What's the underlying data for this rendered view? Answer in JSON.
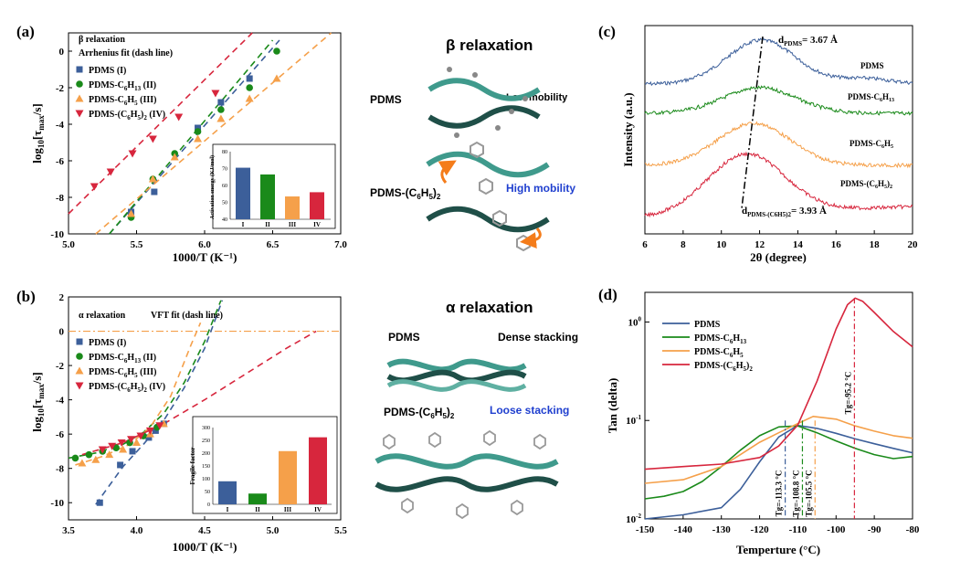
{
  "colors": {
    "blue": "#3c5f9a",
    "green": "#1a8a1a",
    "orange": "#f5a04a",
    "red": "#d7263d",
    "teal": "#3f9a8c",
    "dark_teal": "#1f4f48"
  },
  "panel_a": {
    "label": "(a)",
    "note1": "β relaxation",
    "note2": "Arrhenius fit (dash line)",
    "legend": [
      {
        "base": "PDMS (I)"
      },
      {
        "base": "PDMS-C",
        "sub": "6",
        "tail": "H",
        "sub2": "13",
        "end": " (II)"
      },
      {
        "base": "PDMS-C",
        "sub": "6",
        "tail": "H",
        "sub2": "5",
        "end": " (III)"
      },
      {
        "base": "PDMS-(C",
        "sub": "6",
        "tail": "H",
        "sub2": "5",
        "end": ")",
        "sub3": "2",
        "end2": " (IV)"
      }
    ],
    "ylabel": "log10[τmax/s]",
    "xlabel": "1000/T (K⁻¹)",
    "xticks": [
      "5.0",
      "5.5",
      "6.0",
      "6.5",
      "7.0"
    ],
    "yticks": [
      "0",
      "-2",
      "-4",
      "-6",
      "-8",
      "-10"
    ],
    "inset": {
      "ylabel": "Activation energy (KJ/mol)",
      "yticks": [
        "40",
        "50",
        "60",
        "70",
        "80"
      ],
      "categories": [
        "I",
        "II",
        "III",
        "IV"
      ],
      "values": [
        70.5,
        66.5,
        53.5,
        56
      ]
    }
  },
  "panel_b": {
    "label": "(b)",
    "note1": "α relaxation",
    "note2": "VFT fit (dash line)",
    "legend": [
      {
        "base": "PDMS (I)"
      },
      {
        "base": "PDMS-C",
        "sub": "6",
        "tail": "H",
        "sub2": "13",
        "end": " (II)"
      },
      {
        "base": "PDMS-C",
        "sub": "6",
        "tail": "H",
        "sub2": "5",
        "end": " (III)"
      },
      {
        "base": "PDMS-(C",
        "sub": "6",
        "tail": "H",
        "sub2": "5",
        "end": ")",
        "sub3": "2",
        "end2": " (IV)"
      }
    ],
    "ylabel": "log10[τmax/s]",
    "xlabel": "1000/T (K⁻¹)",
    "xticks": [
      "3.5",
      "4.0",
      "4.5",
      "5.0",
      "5.5"
    ],
    "yticks": [
      "2",
      "0",
      "-2",
      "-4",
      "-6",
      "-8",
      "-10"
    ],
    "inset": {
      "ylabel": "Fragile factor",
      "yticks": [
        "0",
        "50",
        "100",
        "150",
        "200",
        "250",
        "300"
      ],
      "categories": [
        "I",
        "II",
        "III",
        "IV"
      ],
      "values": [
        90,
        42,
        208,
        262
      ]
    }
  },
  "schematic_top": {
    "title": "β relaxation",
    "pdms": "PDMS",
    "low": "Low mobility",
    "pdms2_base": "PDMS-(C",
    "pdms2_sub": "6",
    "pdms2_tail": "H",
    "pdms2_sub2": "5",
    "pdms2_end": ")",
    "pdms2_sub3": "2",
    "high": "High mobility"
  },
  "schematic_bottom": {
    "title": "α relaxation",
    "pdms": "PDMS",
    "dense": "Dense stacking",
    "pdms2_base": "PDMS-(C",
    "pdms2_sub": "6",
    "pdms2_tail": "H",
    "pdms2_sub2": "5",
    "pdms2_end": ")",
    "pdms2_sub3": "2",
    "loose": "Loose stacking"
  },
  "panel_c": {
    "label": "(c)",
    "ylabel": "Intensity (a.u.)",
    "xlabel": "2θ (degree)",
    "xticks": [
      "6",
      "8",
      "10",
      "12",
      "14",
      "16",
      "18",
      "20"
    ],
    "d_top": "d",
    "d_top_sub": "PDMS",
    "d_top_val": "= 3.67 Å",
    "d_bot": "d",
    "d_bot_sub": "PDMS-(C6H5)2",
    "d_bot_val": "= 3.93 Å",
    "labels": [
      "PDMS",
      "PDMS-C6H13",
      "PDMS-C6H5",
      "PDMS-(C6H5)2"
    ]
  },
  "panel_d": {
    "label": "(d)",
    "ylabel": "Tan (delta)",
    "xlabel": "Temperture (°C)",
    "xticks": [
      "-150",
      "-140",
      "-130",
      "-120",
      "-110",
      "-100",
      "-90",
      "-80"
    ],
    "legend": [
      "PDMS",
      "PDMS-C6H13",
      "PDMS-C6H5",
      "PDMS-(C6H5)2"
    ],
    "tg": [
      "Tg=-113.3 °C",
      "Tg=-108.8 °C",
      "Tg=-105.5 °C",
      "Tg=-95.2 °C"
    ]
  },
  "chart_data": [
    {
      "type": "scatter",
      "panel": "a",
      "xlim": [
        5.0,
        7.0
      ],
      "ylim": [
        -10,
        1
      ],
      "series": [
        {
          "name": "PDMS (I)",
          "x": [
            5.46,
            5.63,
            5.95,
            6.12,
            6.33
          ],
          "y": [
            -8.8,
            -7.7,
            -4.2,
            -2.8,
            -1.5
          ]
        },
        {
          "name": "PDMS-C6H13 (II)",
          "x": [
            5.46,
            5.62,
            5.78,
            5.95,
            6.12,
            6.33,
            6.53
          ],
          "y": [
            -9.1,
            -7.0,
            -5.6,
            -4.4,
            -3.2,
            -2.0,
            0.0
          ]
        },
        {
          "name": "PDMS-C6H5 (III)",
          "x": [
            5.46,
            5.62,
            5.78,
            5.95,
            6.12,
            6.33,
            6.53
          ],
          "y": [
            -8.9,
            -7.0,
            -5.8,
            -4.8,
            -3.7,
            -2.6,
            -1.5
          ]
        },
        {
          "name": "PDMS-(C6H5)2 (IV)",
          "x": [
            5.19,
            5.31,
            5.47,
            5.62,
            5.81,
            6.08
          ],
          "y": [
            -7.4,
            -6.6,
            -5.6,
            -4.8,
            -3.6,
            -2.3
          ]
        }
      ]
    },
    {
      "type": "bar",
      "panel": "a-inset",
      "categories": [
        "I",
        "II",
        "III",
        "IV"
      ],
      "values": [
        70.5,
        66.5,
        53.5,
        56
      ],
      "ylim": [
        40,
        80
      ],
      "ylabel": "Activation energy (KJ/mol)"
    },
    {
      "type": "scatter",
      "panel": "b",
      "xlim": [
        3.5,
        5.5
      ],
      "ylim": [
        -11,
        2
      ],
      "series": [
        {
          "name": "PDMS (I)",
          "x": [
            3.73,
            3.88,
            3.97,
            4.09,
            4.14,
            4.2
          ],
          "y": [
            -10.0,
            -7.8,
            -7.0,
            -6.2,
            -5.8,
            -5.4
          ]
        },
        {
          "name": "PDMS-C6H13 (II)",
          "x": [
            3.55,
            3.65,
            3.75,
            3.85,
            3.95,
            4.05,
            4.15
          ],
          "y": [
            -7.4,
            -7.2,
            -7.0,
            -6.8,
            -6.5,
            -6.1,
            -5.6
          ]
        },
        {
          "name": "PDMS-C6H5 (III)",
          "x": [
            3.6,
            3.7,
            3.8,
            3.9,
            4.0,
            4.1,
            4.2
          ],
          "y": [
            -7.7,
            -7.5,
            -7.2,
            -6.9,
            -6.5,
            -6.0,
            -5.4
          ]
        },
        {
          "name": "PDMS-(C6H5)2 (IV)",
          "x": [
            3.75,
            3.82,
            3.89,
            3.96,
            4.03,
            4.1,
            4.17
          ],
          "y": [
            -6.9,
            -6.7,
            -6.5,
            -6.3,
            -6.1,
            -5.8,
            -5.5
          ]
        }
      ]
    },
    {
      "type": "bar",
      "panel": "b-inset",
      "categories": [
        "I",
        "II",
        "III",
        "IV"
      ],
      "values": [
        90,
        42,
        208,
        262
      ],
      "ylim": [
        0,
        300
      ],
      "ylabel": "Fragile factor"
    },
    {
      "type": "line",
      "panel": "c",
      "xlim": [
        6,
        20
      ],
      "peaks": {
        "PDMS": 12.1,
        "PDMS-C6H13": 12.0,
        "PDMS-C6H5": 11.7,
        "PDMS-(C6H5)2": 11.3
      }
    },
    {
      "type": "line",
      "panel": "d",
      "xlim": [
        -150,
        -80
      ],
      "ylim": [
        0.01,
        2
      ],
      "yscale": "log",
      "series": [
        {
          "name": "PDMS",
          "x": [
            -150,
            -140,
            -130,
            -125,
            -120,
            -115,
            -110,
            -105,
            -100,
            -95,
            -90,
            -85,
            -80
          ],
          "y": [
            0.01,
            0.011,
            0.013,
            0.02,
            0.038,
            0.068,
            0.089,
            0.083,
            0.074,
            0.065,
            0.058,
            0.052,
            0.047
          ]
        },
        {
          "name": "PDMS-C6H13",
          "x": [
            -150,
            -145,
            -140,
            -135,
            -130,
            -125,
            -120,
            -115,
            -110,
            -105,
            -100,
            -95,
            -90,
            -85,
            -80
          ],
          "y": [
            0.016,
            0.017,
            0.019,
            0.024,
            0.034,
            0.05,
            0.07,
            0.086,
            0.088,
            0.075,
            0.062,
            0.052,
            0.045,
            0.041,
            0.043
          ]
        },
        {
          "name": "PDMS-C6H5",
          "x": [
            -150,
            -140,
            -130,
            -125,
            -120,
            -115,
            -110,
            -106,
            -100,
            -95,
            -90,
            -85,
            -80
          ],
          "y": [
            0.023,
            0.025,
            0.034,
            0.045,
            0.06,
            0.075,
            0.093,
            0.11,
            0.103,
            0.088,
            0.078,
            0.07,
            0.066
          ]
        },
        {
          "name": "PDMS-(C6H5)2",
          "x": [
            -150,
            -140,
            -130,
            -120,
            -115,
            -110,
            -105,
            -100,
            -97,
            -95,
            -93,
            -90,
            -85,
            -80
          ],
          "y": [
            0.032,
            0.034,
            0.036,
            0.042,
            0.055,
            0.09,
            0.25,
            0.85,
            1.5,
            1.75,
            1.62,
            1.25,
            0.8,
            0.56
          ]
        }
      ]
    }
  ]
}
